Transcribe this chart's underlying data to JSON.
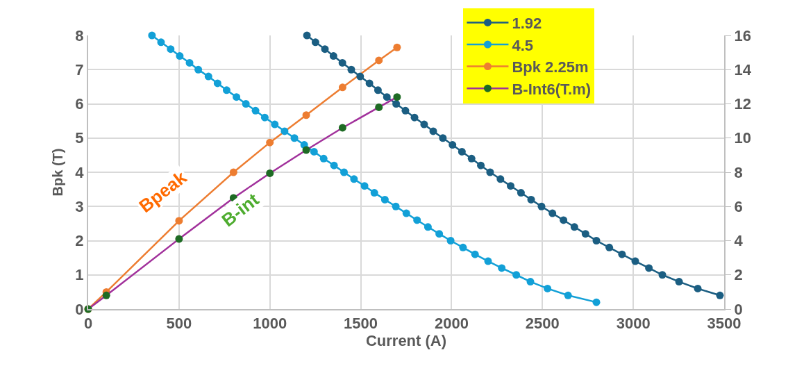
{
  "chart_data": {
    "type": "line",
    "xlabel": "Current (A)",
    "ylabel": "Bpk (T)",
    "xlim": [
      0,
      3500
    ],
    "xticks": [
      0,
      500,
      1000,
      1500,
      2000,
      2500,
      3000,
      3500
    ],
    "ylim": [
      0,
      8
    ],
    "yticks": [
      0,
      1,
      2,
      3,
      4,
      5,
      6,
      7,
      8
    ],
    "y2lim": [
      0,
      16
    ],
    "y2ticks": [
      0,
      2,
      4,
      6,
      8,
      10,
      12,
      14,
      16
    ],
    "grid": true,
    "legend": "top right",
    "marker": "circle",
    "line_style": "solid",
    "series": [
      {
        "name": "1.92",
        "color": "#1b5e82",
        "x": [
          1204,
          1251,
          1303,
          1350,
          1399,
          1448,
          1497,
          1548,
          1595,
          1644,
          1695,
          1746,
          1796,
          1849,
          1899,
          1952,
          2005,
          2057,
          2110,
          2161,
          2212,
          2269,
          2325,
          2382,
          2438,
          2495,
          2555,
          2616,
          2676,
          2737,
          2797,
          2868,
          2938,
          3011,
          3086,
          3160,
          3252,
          3355,
          3477
        ],
        "values": [
          8,
          7.8,
          7.6,
          7.4,
          7.2,
          7,
          6.8,
          6.6,
          6.4,
          6.2,
          6,
          5.8,
          5.6,
          5.4,
          5.2,
          5,
          4.8,
          4.6,
          4.4,
          4.2,
          4,
          3.8,
          3.6,
          3.4,
          3.2,
          3,
          2.8,
          2.6,
          2.4,
          2.2,
          2,
          1.8,
          1.6,
          1.4,
          1.2,
          1,
          0.8,
          0.6,
          0.4
        ]
      },
      {
        "name": "4.5",
        "color": "#12a0d7",
        "x": [
          351,
          401,
          454,
          504,
          558,
          606,
          662,
          712,
          762,
          816,
          868,
          921,
          972,
          1027,
          1081,
          1135,
          1189,
          1243,
          1296,
          1353,
          1408,
          1463,
          1521,
          1575,
          1633,
          1693,
          1751,
          1810,
          1870,
          1932,
          1995,
          2063,
          2129,
          2201,
          2276,
          2356,
          2434,
          2528,
          2641,
          2797
        ],
        "values": [
          8,
          7.8,
          7.6,
          7.4,
          7.2,
          7,
          6.8,
          6.6,
          6.4,
          6.2,
          6,
          5.8,
          5.6,
          5.4,
          5.2,
          5,
          4.8,
          4.6,
          4.4,
          4.2,
          4,
          3.8,
          3.6,
          3.4,
          3.2,
          3,
          2.8,
          2.6,
          2.4,
          2.2,
          2,
          1.8,
          1.6,
          1.4,
          1.2,
          1,
          0.8,
          0.6,
          0.4,
          0.2
        ]
      },
      {
        "name": "Bpk 2.25m",
        "color": "#ed7d31",
        "x": [
          0,
          100,
          500,
          800,
          1000,
          1200,
          1400,
          1600,
          1700
        ],
        "values": [
          0,
          0.5,
          2.58,
          4.0,
          4.87,
          5.67,
          6.48,
          7.27,
          7.65
        ]
      },
      {
        "name": "B-Int6(T.m)",
        "color": "#a1309b",
        "colors": [
          "#1e6b24",
          "#1e6b24",
          "#1e6b24",
          "#1e6b24",
          "#1e6b24",
          "#1e6b24",
          "#1e6b24",
          "#1e6b24",
          "#1e6b24"
        ],
        "axis": "y2",
        "x": [
          0,
          100,
          500,
          800,
          1000,
          1200,
          1400,
          1600,
          1700
        ],
        "values": [
          0,
          0.8,
          4.1,
          6.5,
          7.94,
          9.3,
          10.6,
          11.8,
          12.4
        ]
      }
    ],
    "annotations": [
      "Bpeak",
      "B-int"
    ]
  }
}
